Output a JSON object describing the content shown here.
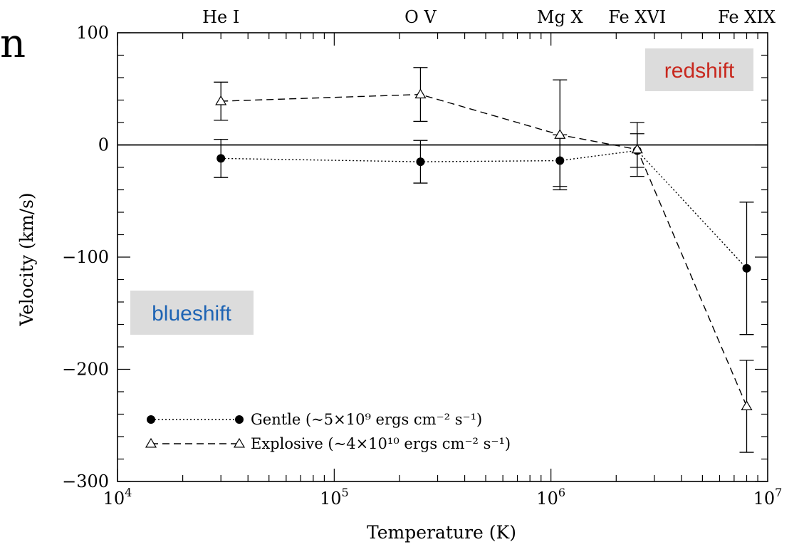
{
  "chart_data": {
    "type": "scatter",
    "title": "",
    "xlabel": "Temperature (K)",
    "ylabel": "Velocity (km/s)",
    "xscale": "log",
    "xlim": [
      10000,
      10000000
    ],
    "ylim": [
      -300,
      100
    ],
    "x_tick_labels": [
      {
        "value": 10000,
        "base": "10",
        "exp": "4"
      },
      {
        "value": 100000,
        "base": "10",
        "exp": "5"
      },
      {
        "value": 1000000,
        "base": "10",
        "exp": "6"
      },
      {
        "value": 10000000,
        "base": "10",
        "exp": "7"
      }
    ],
    "y_tick_labels": [
      {
        "value": 100,
        "label": "100"
      },
      {
        "value": 0,
        "label": "0"
      },
      {
        "value": -100,
        "label": "−100"
      },
      {
        "value": -200,
        "label": "−200"
      },
      {
        "value": -300,
        "label": "−300"
      }
    ],
    "top_axis_labels": [
      {
        "x": 30000,
        "label": "He I"
      },
      {
        "x": 250000,
        "label": "O V"
      },
      {
        "x": 1100000,
        "label": "Mg X"
      },
      {
        "x": 2500000,
        "label": "Fe XVI"
      },
      {
        "x": 8000000,
        "label": "Fe XIX"
      }
    ],
    "zero_line": 0,
    "series": [
      {
        "name": "Gentle",
        "legend_label": "Gentle (~5×10⁹ ergs cm⁻² s⁻¹)",
        "marker": "filled-circle",
        "linestyle": "dotted",
        "x": [
          30000,
          250000,
          1100000,
          2500000,
          8000000
        ],
        "y": [
          -12,
          -15,
          -14,
          -5,
          -110
        ],
        "yerr": [
          17,
          19,
          23,
          15,
          59
        ]
      },
      {
        "name": "Explosive",
        "legend_label": "Explosive (~4×10¹⁰ ergs cm⁻² s⁻¹)",
        "marker": "open-triangle",
        "linestyle": "dashed",
        "x": [
          30000,
          250000,
          1100000,
          2500000,
          8000000
        ],
        "y": [
          39,
          45,
          9,
          -4,
          -233
        ],
        "yerr": [
          17,
          24,
          49,
          24,
          41
        ]
      }
    ],
    "legend_position": "bottom-left",
    "annotations": [
      {
        "text": "redshift",
        "color": "#c8281e",
        "position": "top-right"
      },
      {
        "text": "blueshift",
        "color": "#1e64b4",
        "position": "left"
      }
    ],
    "grid": false
  },
  "page_fragment_text": "n"
}
